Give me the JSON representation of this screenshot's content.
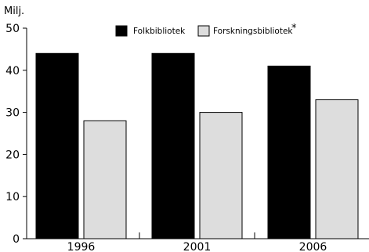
{
  "chart_data": {
    "type": "bar",
    "title": "",
    "xlabel": "",
    "ylabel": "Milj.",
    "ylim": [
      0,
      50
    ],
    "yticks": [
      0,
      10,
      20,
      30,
      40,
      50
    ],
    "categories": [
      "1996",
      "2001",
      "2006"
    ],
    "series": [
      {
        "name": "Folkbibliotek",
        "values": [
          44,
          44,
          41
        ],
        "color": "#000000"
      },
      {
        "name": "Forskningsbibliotek",
        "values": [
          28,
          30,
          33
        ],
        "color": "#dddddd"
      }
    ],
    "legend": {
      "placement": "top-center",
      "footnote_marker": "*"
    },
    "grid": false
  }
}
